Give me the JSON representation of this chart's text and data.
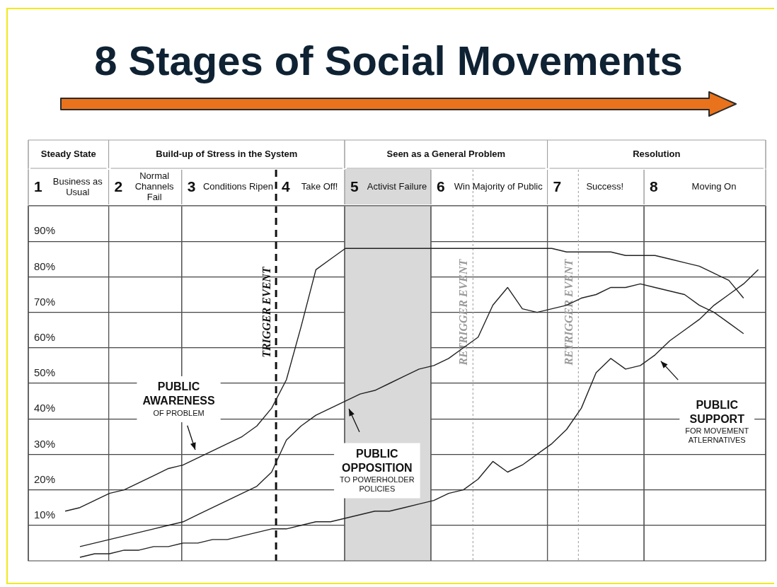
{
  "chart_data": {
    "type": "line",
    "title": "8 Stages of Social Movements",
    "categories": [
      null,
      null,
      null,
      null,
      null,
      null,
      null,
      null,
      null,
      null,
      null,
      null,
      null,
      null,
      null,
      null,
      null,
      null,
      null,
      null,
      null,
      null,
      null,
      null,
      null,
      null,
      null,
      null,
      null,
      null,
      null,
      null,
      null,
      null,
      null,
      null,
      null,
      null,
      null,
      null,
      null,
      null,
      null,
      null,
      null,
      null,
      null,
      null,
      null,
      null
    ],
    "ylim": [
      0,
      100
    ],
    "yticks": [
      {
        "value": 10,
        "label": "10%"
      },
      {
        "value": 20,
        "label": "20%"
      },
      {
        "value": 30,
        "label": "30%"
      },
      {
        "value": 40,
        "label": "40%"
      },
      {
        "value": 50,
        "label": "50%"
      },
      {
        "value": 60,
        "label": "60%"
      },
      {
        "value": 70,
        "label": "70%"
      },
      {
        "value": 80,
        "label": "80%"
      },
      {
        "value": 90,
        "label": "90%"
      },
      {
        "value": 100,
        "label": null
      }
    ],
    "tick_labels": "y",
    "grid": true,
    "marker": "none",
    "series": [
      {
        "color": "#222222",
        "values": [
          null,
          null,
          14,
          15,
          17,
          19,
          20,
          22,
          24,
          26,
          27,
          29,
          31,
          33,
          35,
          38,
          43,
          51,
          66,
          82,
          85,
          88,
          88,
          88,
          88,
          88,
          88,
          88,
          88,
          88,
          88,
          88,
          88,
          88,
          88,
          88,
          87,
          87,
          87,
          87,
          86,
          86,
          86,
          85,
          84,
          83,
          81,
          79,
          74,
          null
        ]
      },
      {
        "color": "#222222",
        "values": [
          null,
          null,
          null,
          4,
          5,
          6,
          7,
          8,
          9,
          10,
          11,
          13,
          15,
          17,
          19,
          21,
          25,
          34,
          38,
          41,
          43,
          45,
          47,
          48,
          50,
          52,
          54,
          55,
          57,
          60,
          63,
          72,
          77,
          71,
          70,
          71,
          72,
          74,
          75,
          77,
          77,
          78,
          77,
          76,
          75,
          72,
          70,
          67,
          64,
          null
        ]
      },
      {
        "color": "#222222",
        "values": [
          null,
          null,
          null,
          1,
          2,
          2,
          3,
          3,
          4,
          4,
          5,
          5,
          6,
          6,
          7,
          8,
          9,
          9,
          10,
          11,
          11,
          12,
          13,
          14,
          14,
          15,
          16,
          17,
          19,
          20,
          23,
          28,
          25,
          27,
          30,
          33,
          37,
          43,
          53,
          57,
          54,
          55,
          58,
          62,
          65,
          68,
          72,
          75,
          78,
          82
        ]
      }
    ],
    "annotations": [
      "Steady State",
      "Build-up of Stress in the System",
      "Seen as a General Problem",
      "Resolution",
      "1 Business as Usual",
      "2 Normal Channels Fail",
      "3 Conditions Ripen",
      "4 Take Off!",
      "5 Activist Failure",
      "6 Win Majority of Public",
      "7 Success!",
      "8 Moving On",
      "TRIGGER EVENT",
      "RETRIGGER EVENT",
      "RETRIGGER EVENT",
      "PUBLIC\nAWARENESS\nOF PROBLEM",
      "PUBLIC\nOPPOSITION\nTO POWERHOLDER\nPOLICIES",
      "PUBLIC\nSUPPORT\nFOR MOVEMENT\nATLERNATIVES"
    ]
  }
}
